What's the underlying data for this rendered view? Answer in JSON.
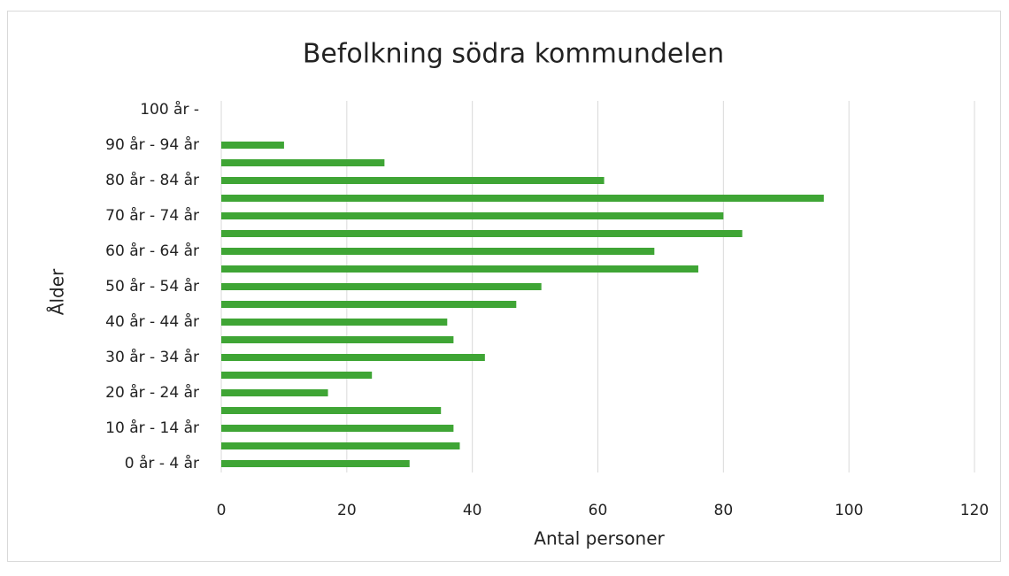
{
  "chart_data": {
    "type": "bar",
    "orientation": "horizontal",
    "title": "Befolkning södra kommundelen",
    "x_label": "Antal personer",
    "y_label": "Ålder",
    "categories": [
      "0 år - 4 år",
      null,
      "10 år - 14 år",
      null,
      "20 år - 24 år",
      null,
      "30 år - 34 år",
      null,
      "40 år - 44 år",
      null,
      "50 år - 54 år",
      null,
      "60 år - 64 år",
      null,
      "70 år - 74 år",
      null,
      "80 år - 84 år",
      null,
      "90 år - 94 år",
      null,
      "100 år -"
    ],
    "values": [
      30,
      38,
      37,
      35,
      17,
      24,
      42,
      37,
      36,
      47,
      51,
      76,
      69,
      83,
      80,
      96,
      61,
      26,
      10,
      0,
      0
    ],
    "color": "#3fa535",
    "xlim": [
      0,
      120
    ],
    "xticks": [
      0,
      20,
      40,
      60,
      80,
      100,
      120
    ],
    "grid": true
  }
}
